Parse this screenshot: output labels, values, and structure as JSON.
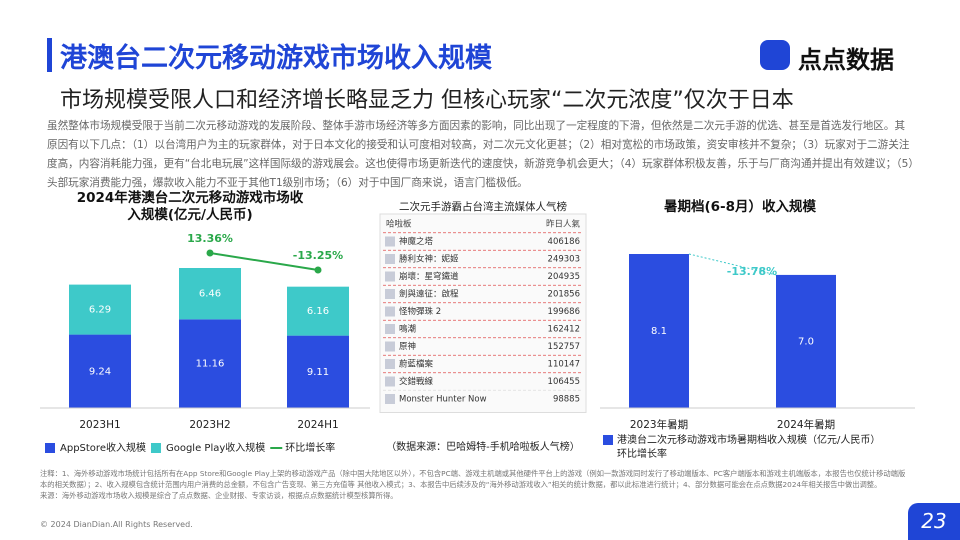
{
  "header": {
    "title": "港澳台二次元移动游戏市场收入规模",
    "subtitle": "市场规模受限人口和经济增长略显乏力 但核心玩家“二次元浓度”仅次于日本",
    "logo": "点点数据"
  },
  "intro": "虽然整体市场规模受限于当前二次元移动游戏的发展阶段、整体手游市场经济等多方面因素的影响，同比出现了一定程度的下滑，但依然是二次元手游的优选、甚至是首选发行地区。其原因有以下几点：（1）以台湾用户为主的玩家群体，对于日本文化的接受和认可度相对较高，对二次元文化更甚；（2）相对宽松的市场政策，资安审核并不复杂；（3）玩家对于二游关注度高，内容消耗能力强，更有“台北电玩展”这样国际级的游戏展会。这也使得市场更新迭代的速度快，新游竞争机会更大；（4）玩家群体积极友善，乐于与厂商沟通并提出有效建议；（5）头部玩家消费能力强，爆款收入能力不亚于其他T1级别市场；（6）对于中国厂商来说，语言门槛极低。",
  "chart_data": [
    {
      "type": "bar",
      "stacked": true,
      "title": "2024年港澳台二次元移动游戏市场收入规模(亿元/人民币)",
      "categories": [
        "2023H1",
        "2023H2",
        "2024H1"
      ],
      "series": [
        {
          "name": "AppStore收入规模",
          "color": "#2b4de0",
          "values": [
            9.24,
            11.16,
            9.11
          ]
        },
        {
          "name": "Google Play收入规模",
          "color": "#3ec9c9",
          "values": [
            6.29,
            6.46,
            6.16
          ]
        },
        {
          "name": "环比增长率",
          "type": "line",
          "color": "#2aa84a",
          "values": [
            null,
            13.36,
            -13.25
          ],
          "value_labels": [
            null,
            "13.36%",
            "-13.25%"
          ]
        }
      ]
    },
    {
      "type": "table",
      "title": "二次元手游霸占台湾主流媒体人气榜",
      "columns": [
        "哈啦板",
        "昨日人氣"
      ],
      "rows": [
        [
          "神魔之塔",
          406186
        ],
        [
          "勝利女神：妮姬",
          249303
        ],
        [
          "崩壞：星穹鐵道",
          204935
        ],
        [
          "劍與遠征：啟程",
          201856
        ],
        [
          "怪物彈珠 2",
          199686
        ],
        [
          "鳴潮",
          162412
        ],
        [
          "原神",
          152757
        ],
        [
          "蔚藍檔案",
          110147
        ],
        [
          "交錯戰線",
          106455
        ],
        [
          "Monster Hunter Now",
          98885
        ]
      ],
      "source": "（数据来源：巴哈姆特-手机哈啦板人气榜）"
    },
    {
      "type": "bar",
      "title": "暑期档(6-8月）收入规模",
      "categories": [
        "2023年暑期",
        "2024年暑期"
      ],
      "series": [
        {
          "name": "港澳台二次元移动游戏市场暑期档收入规模（亿元/人民币）",
          "color": "#2b4de0",
          "values": [
            8.1,
            7.0
          ],
          "value_labels": [
            "8.1",
            "7.0"
          ]
        }
      ],
      "change": {
        "name": "环比增长率",
        "value": -13.78,
        "label": "-13.78%",
        "color": "#3ec9c9"
      }
    }
  ],
  "notes": [
    "注释：1、海外移动游戏市场统计包括所有在App Store和Google Play上架的移动游戏产品（除中国大陆地区以外），不包含PC端、游戏主机端或其他硬件平台上的游戏（例如一款游戏同时发行了移动端版本、PC客户端版本和游戏主机端版本，本报告也仅统计移动端版本的相关数据）；2、收入规模包含统计范围内用户消费的总金额，不包含广告变现、第三方充值等 其他收入模式；3、本报告中后续涉及的“海外移动游戏收入”相关的统计数据，都以此标准进行统计；4、部分数据可能会在点点数据2024年相关报告中做出调整。",
    "来源：海外移动游戏市场收入规模是综合了点点数据、企业财报、专家访谈，根据点点数据统计模型核算所得。"
  ],
  "footer": {
    "copyright": "© 2024 DianDian.All Rights Reserved.",
    "page": "23"
  }
}
